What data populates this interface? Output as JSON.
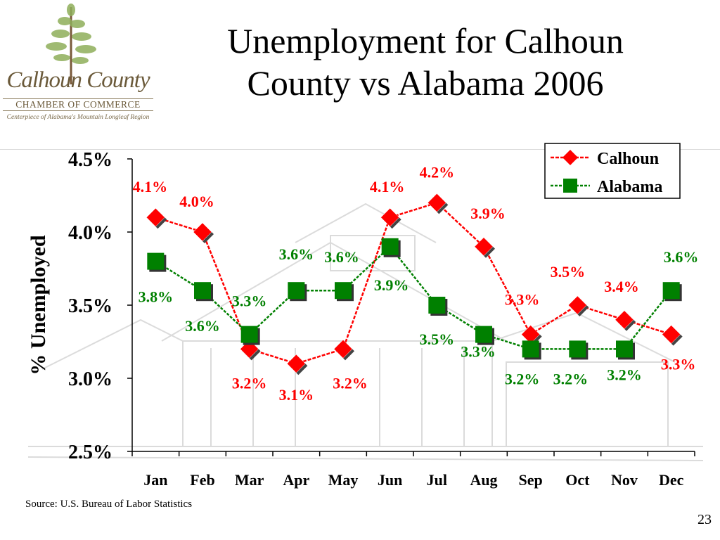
{
  "slide": {
    "title_line1": "Unemployment for Calhoun",
    "title_line2": "County vs Alabama 2006",
    "source": "Source: U.S. Bureau of Labor Statistics",
    "page_number": "23"
  },
  "logo": {
    "name": "Calhoun County",
    "subtitle": "CHAMBER OF COMMERCE",
    "tagline": "Centerpiece of Alabama's Mountain Longleaf Region"
  },
  "chart_data": {
    "type": "line",
    "title": "",
    "xlabel": "",
    "ylabel": "% Unemployed",
    "categories": [
      "Jan",
      "Feb",
      "Mar",
      "Apr",
      "May",
      "Jun",
      "Jul",
      "Aug",
      "Sep",
      "Oct",
      "Nov",
      "Dec"
    ],
    "ylim": [
      2.5,
      4.5
    ],
    "yticks": [
      "2.5%",
      "3.0%",
      "3.5%",
      "4.0%",
      "4.5%"
    ],
    "legend_position": "top-right",
    "series": [
      {
        "name": "Calhoun",
        "color": "#ff0000",
        "marker": "diamond",
        "values": [
          4.1,
          4.0,
          3.2,
          3.1,
          3.2,
          4.1,
          4.2,
          3.9,
          3.3,
          3.5,
          3.4,
          3.3
        ],
        "labels": [
          "4.1%",
          "4.0%",
          "3.2%",
          "3.1%",
          "3.2%",
          "4.1%",
          "4.2%",
          "3.9%",
          "3.3%",
          "3.5%",
          "3.4%",
          "3.3%"
        ]
      },
      {
        "name": "Alabama",
        "color": "#008000",
        "marker": "square",
        "values": [
          3.8,
          3.6,
          3.3,
          3.6,
          3.6,
          3.9,
          3.5,
          3.3,
          3.2,
          3.2,
          3.2,
          3.6
        ],
        "labels": [
          "3.8%",
          "3.6%",
          "3.3%",
          "3.6%",
          "3.6%",
          "3.9%",
          "3.5%",
          "3.3%",
          "3.2%",
          "3.2%",
          "3.2%",
          "3.6%"
        ]
      }
    ]
  }
}
